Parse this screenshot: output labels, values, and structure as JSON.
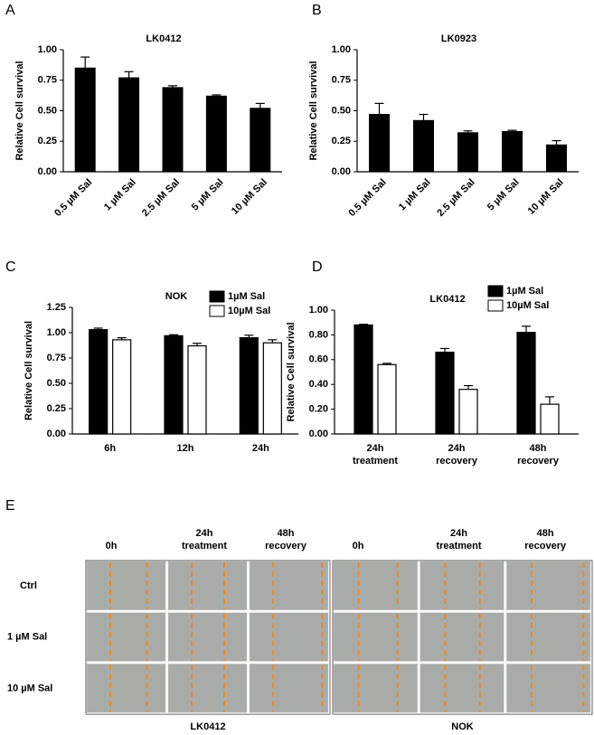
{
  "chart_data": [
    {
      "type": "bar",
      "panel": "A",
      "title": "LK0412",
      "ylabel": "Relative Cell survival",
      "categories": [
        "0.5 µM Sal",
        "1 µM Sal",
        "2.5 µM Sal",
        "5 µM Sal",
        "10 µM Sal"
      ],
      "values": [
        0.85,
        0.77,
        0.69,
        0.62,
        0.52
      ],
      "errors": [
        0.09,
        0.05,
        0.015,
        0.01,
        0.04
      ],
      "color": "#000000",
      "ylim": [
        0,
        1
      ],
      "yticks": [
        {
          "value": 0,
          "label": "0.00"
        },
        {
          "value": 0.25,
          "label": "0.25"
        },
        {
          "value": 0.5,
          "label": "0.50"
        },
        {
          "value": 0.75,
          "label": "0.75"
        },
        {
          "value": 1,
          "label": "1.00"
        }
      ]
    },
    {
      "type": "bar",
      "panel": "B",
      "title": "LK0923",
      "ylabel": "Relative Cell survival",
      "categories": [
        "0.5 µM Sal",
        "1 µM Sal",
        "2.5 µM Sal",
        "5 µM Sal",
        "10 µM Sal"
      ],
      "values": [
        0.47,
        0.42,
        0.32,
        0.33,
        0.22
      ],
      "errors": [
        0.09,
        0.05,
        0.015,
        0.01,
        0.035
      ],
      "color": "#000000",
      "ylim": [
        0,
        1
      ],
      "yticks": [
        {
          "value": 0,
          "label": "0.00"
        },
        {
          "value": 0.25,
          "label": "0.25"
        },
        {
          "value": 0.5,
          "label": "0.50"
        },
        {
          "value": 0.75,
          "label": "0.75"
        },
        {
          "value": 1,
          "label": "1.00"
        }
      ]
    },
    {
      "type": "grouped-bar",
      "panel": "C",
      "title": "NOK",
      "ylabel": "Relative Cell survival",
      "categories": [
        "6h",
        "12h",
        "24h"
      ],
      "series": [
        {
          "name": "1µM Sal",
          "color": "#000000",
          "values": [
            1.03,
            0.97,
            0.95
          ],
          "errors": [
            0.015,
            0.01,
            0.025
          ]
        },
        {
          "name": "10µM Sal",
          "color": "#ffffff",
          "values": [
            0.93,
            0.87,
            0.9
          ],
          "errors": [
            0.02,
            0.025,
            0.03
          ]
        }
      ],
      "ylim": [
        0,
        1.25
      ],
      "yticks": [
        {
          "value": 0,
          "label": "0.00"
        },
        {
          "value": 0.25,
          "label": "0.25"
        },
        {
          "value": 0.5,
          "label": "0.50"
        },
        {
          "value": 0.75,
          "label": "0.75"
        },
        {
          "value": 1,
          "label": "1.00"
        },
        {
          "value": 1.25,
          "label": "1.25"
        }
      ]
    },
    {
      "type": "grouped-bar",
      "panel": "D",
      "title": "LK0412",
      "ylabel": "Relative Cell survival",
      "categories": [
        "24h treatment",
        "24h recovery",
        "48h recovery"
      ],
      "series": [
        {
          "name": "1µM Sal",
          "color": "#000000",
          "values": [
            0.88,
            0.66,
            0.82
          ],
          "errors": [
            0.005,
            0.03,
            0.05
          ]
        },
        {
          "name": "10µM Sal",
          "color": "#ffffff",
          "values": [
            0.56,
            0.36,
            0.24
          ],
          "errors": [
            0.01,
            0.03,
            0.06
          ]
        }
      ],
      "ylim": [
        0,
        1
      ],
      "yticks": [
        {
          "value": 0,
          "label": "0.00"
        },
        {
          "value": 0.2,
          "label": "0.20"
        },
        {
          "value": 0.4,
          "label": "0.40"
        },
        {
          "value": 0.6,
          "label": "0.60"
        },
        {
          "value": 0.8,
          "label": "0.80"
        },
        {
          "value": 1,
          "label": "1.00"
        }
      ]
    }
  ],
  "panel_e": {
    "panel": "E",
    "columns": [
      "0h",
      "24h treatment",
      "48h recovery"
    ],
    "rows": [
      "Ctrl",
      "1 µM Sal",
      "10 µM Sal"
    ],
    "groups": [
      "LK0412",
      "NOK"
    ]
  }
}
